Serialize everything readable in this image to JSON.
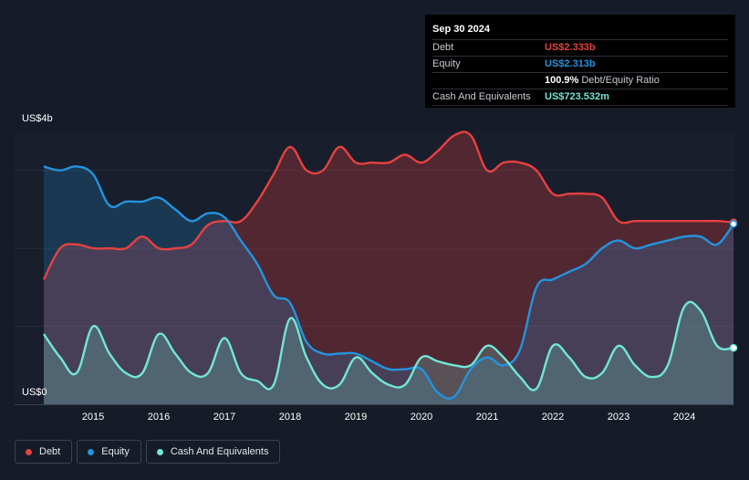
{
  "tooltip": {
    "date": "Sep 30 2024",
    "debt_label": "Debt",
    "debt_value": "US$2.333b",
    "equity_label": "Equity",
    "equity_value": "US$2.313b",
    "ratio_value": "100.9%",
    "ratio_label": "Debt/Equity Ratio",
    "cash_label": "Cash And Equivalents",
    "cash_value": "US$723.532m"
  },
  "colors": {
    "debt": "#e64141",
    "equity": "#2394df",
    "cash": "#71e7d6",
    "background": "#151b27",
    "plot_background": "#181e2b"
  },
  "legend": [
    {
      "name": "Debt",
      "color": "#e64141"
    },
    {
      "name": "Equity",
      "color": "#2394df"
    },
    {
      "name": "Cash And Equivalents",
      "color": "#71e7d6"
    }
  ],
  "chart_data": {
    "type": "area",
    "title": "",
    "xlabel": "",
    "ylabel": "",
    "y_tick_labels": {
      "top": "US$4b",
      "bottom": "US$0"
    },
    "ylim": [
      0,
      3.5
    ],
    "xlim": [
      2014.25,
      2024.75
    ],
    "x_ticks": [
      "2015",
      "2016",
      "2017",
      "2018",
      "2019",
      "2020",
      "2021",
      "2022",
      "2023",
      "2024"
    ],
    "grid": true,
    "legend_position": "bottom-left",
    "series": [
      {
        "name": "Debt",
        "points": [
          [
            2014.25,
            1.6
          ],
          [
            2014.5,
            2.0
          ],
          [
            2014.75,
            2.05
          ],
          [
            2015.0,
            2.0
          ],
          [
            2015.25,
            2.0
          ],
          [
            2015.5,
            2.0
          ],
          [
            2015.75,
            2.15
          ],
          [
            2016.0,
            2.0
          ],
          [
            2016.25,
            2.0
          ],
          [
            2016.5,
            2.05
          ],
          [
            2016.75,
            2.3
          ],
          [
            2017.0,
            2.35
          ],
          [
            2017.25,
            2.35
          ],
          [
            2017.5,
            2.6
          ],
          [
            2017.75,
            2.95
          ],
          [
            2018.0,
            3.3
          ],
          [
            2018.25,
            3.0
          ],
          [
            2018.5,
            3.0
          ],
          [
            2018.75,
            3.3
          ],
          [
            2019.0,
            3.1
          ],
          [
            2019.25,
            3.1
          ],
          [
            2019.5,
            3.1
          ],
          [
            2019.75,
            3.2
          ],
          [
            2020.0,
            3.1
          ],
          [
            2020.25,
            3.25
          ],
          [
            2020.5,
            3.45
          ],
          [
            2020.75,
            3.45
          ],
          [
            2021.0,
            3.0
          ],
          [
            2021.25,
            3.1
          ],
          [
            2021.5,
            3.1
          ],
          [
            2021.75,
            3.0
          ],
          [
            2022.0,
            2.7
          ],
          [
            2022.25,
            2.7
          ],
          [
            2022.5,
            2.7
          ],
          [
            2022.75,
            2.65
          ],
          [
            2023.0,
            2.35
          ],
          [
            2023.25,
            2.35
          ],
          [
            2023.5,
            2.35
          ],
          [
            2023.75,
            2.35
          ],
          [
            2024.0,
            2.35
          ],
          [
            2024.25,
            2.35
          ],
          [
            2024.5,
            2.35
          ],
          [
            2024.75,
            2.333
          ]
        ]
      },
      {
        "name": "Equity",
        "points": [
          [
            2014.25,
            3.05
          ],
          [
            2014.5,
            3.0
          ],
          [
            2014.75,
            3.05
          ],
          [
            2015.0,
            2.95
          ],
          [
            2015.25,
            2.55
          ],
          [
            2015.5,
            2.6
          ],
          [
            2015.75,
            2.6
          ],
          [
            2016.0,
            2.65
          ],
          [
            2016.25,
            2.5
          ],
          [
            2016.5,
            2.35
          ],
          [
            2016.75,
            2.45
          ],
          [
            2017.0,
            2.4
          ],
          [
            2017.25,
            2.1
          ],
          [
            2017.5,
            1.8
          ],
          [
            2017.75,
            1.4
          ],
          [
            2018.0,
            1.3
          ],
          [
            2018.25,
            0.8
          ],
          [
            2018.5,
            0.65
          ],
          [
            2018.75,
            0.65
          ],
          [
            2019.0,
            0.65
          ],
          [
            2019.25,
            0.55
          ],
          [
            2019.5,
            0.45
          ],
          [
            2019.75,
            0.45
          ],
          [
            2020.0,
            0.45
          ],
          [
            2020.25,
            0.15
          ],
          [
            2020.5,
            0.1
          ],
          [
            2020.75,
            0.45
          ],
          [
            2021.0,
            0.6
          ],
          [
            2021.25,
            0.5
          ],
          [
            2021.5,
            0.7
          ],
          [
            2021.75,
            1.5
          ],
          [
            2022.0,
            1.6
          ],
          [
            2022.25,
            1.7
          ],
          [
            2022.5,
            1.8
          ],
          [
            2022.75,
            2.0
          ],
          [
            2023.0,
            2.1
          ],
          [
            2023.25,
            2.0
          ],
          [
            2023.5,
            2.05
          ],
          [
            2023.75,
            2.1
          ],
          [
            2024.0,
            2.15
          ],
          [
            2024.25,
            2.15
          ],
          [
            2024.5,
            2.05
          ],
          [
            2024.75,
            2.313
          ]
        ]
      },
      {
        "name": "Cash And Equivalents",
        "points": [
          [
            2014.25,
            0.9
          ],
          [
            2014.5,
            0.6
          ],
          [
            2014.75,
            0.4
          ],
          [
            2015.0,
            1.0
          ],
          [
            2015.25,
            0.65
          ],
          [
            2015.5,
            0.4
          ],
          [
            2015.75,
            0.4
          ],
          [
            2016.0,
            0.9
          ],
          [
            2016.25,
            0.65
          ],
          [
            2016.5,
            0.4
          ],
          [
            2016.75,
            0.4
          ],
          [
            2017.0,
            0.85
          ],
          [
            2017.25,
            0.4
          ],
          [
            2017.5,
            0.3
          ],
          [
            2017.75,
            0.25
          ],
          [
            2018.0,
            1.1
          ],
          [
            2018.25,
            0.6
          ],
          [
            2018.5,
            0.25
          ],
          [
            2018.75,
            0.25
          ],
          [
            2019.0,
            0.6
          ],
          [
            2019.25,
            0.4
          ],
          [
            2019.5,
            0.25
          ],
          [
            2019.75,
            0.25
          ],
          [
            2020.0,
            0.6
          ],
          [
            2020.25,
            0.55
          ],
          [
            2020.5,
            0.5
          ],
          [
            2020.75,
            0.5
          ],
          [
            2021.0,
            0.75
          ],
          [
            2021.25,
            0.6
          ],
          [
            2021.5,
            0.35
          ],
          [
            2021.75,
            0.2
          ],
          [
            2022.0,
            0.75
          ],
          [
            2022.25,
            0.6
          ],
          [
            2022.5,
            0.35
          ],
          [
            2022.75,
            0.4
          ],
          [
            2023.0,
            0.75
          ],
          [
            2023.25,
            0.5
          ],
          [
            2023.5,
            0.35
          ],
          [
            2023.75,
            0.5
          ],
          [
            2024.0,
            1.25
          ],
          [
            2024.25,
            1.2
          ],
          [
            2024.5,
            0.75
          ],
          [
            2024.75,
            0.7235
          ]
        ]
      }
    ]
  }
}
